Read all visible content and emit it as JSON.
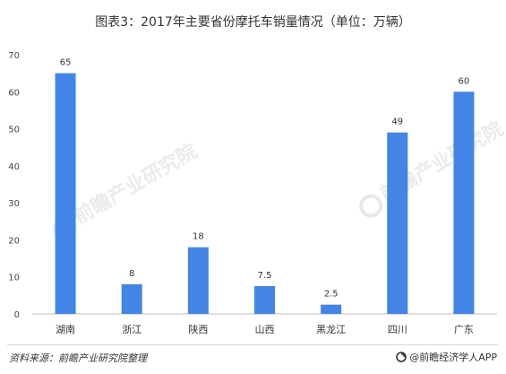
{
  "chart_data": {
    "type": "bar",
    "title": "图表3：2017年主要省份摩托车销量情况（单位：万辆）",
    "categories": [
      "湖南",
      "浙江",
      "陕西",
      "山西",
      "黑龙江",
      "四川",
      "广东"
    ],
    "values": [
      65,
      8,
      18,
      7.5,
      2.5,
      49,
      60
    ],
    "data_labels": [
      "65",
      "8",
      "18",
      "7.5",
      "2.5",
      "49",
      "60"
    ],
    "y_ticks": [
      "0",
      "10",
      "20",
      "30",
      "40",
      "50",
      "60",
      "70"
    ],
    "ylim": [
      0,
      70
    ],
    "xlabel": "",
    "ylabel": "",
    "grid": false,
    "legend": "none",
    "bar_color": "#4285e6"
  },
  "footer": {
    "source": "资料来源：前瞻产业研究院整理",
    "brand": "@前瞻经济学人APP",
    "brand_icon": "brand-logo-icon"
  },
  "watermark": {
    "text": "前瞻产业研究院",
    "color": "#e8e8e8"
  }
}
